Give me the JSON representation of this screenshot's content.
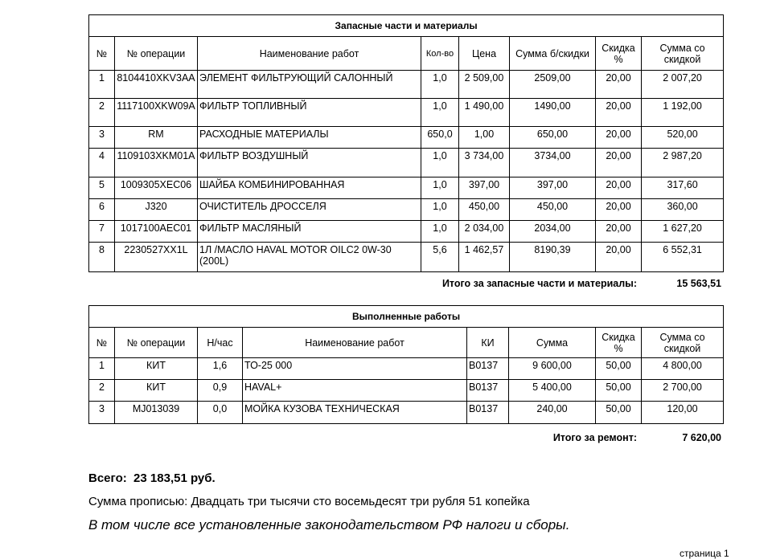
{
  "parts": {
    "title": "Запасные части  и материалы",
    "headers": [
      "№",
      "№ операции",
      "Наименование работ",
      "Кол-во",
      "Цена",
      "Сумма б/скидки",
      "Скидка %",
      "Сумма со скидкой"
    ],
    "rows": [
      [
        "1",
        "8104410XKV3AA",
        "ЭЛЕМЕНТ ФИЛЬТРУЮЩИЙ САЛОННЫЙ",
        "1,0",
        "2 509,00",
        "2509,00",
        "20,00",
        "2 007,20"
      ],
      [
        "2",
        "1117100XKW09A",
        "ФИЛЬТР ТОПЛИВНЫЙ",
        "1,0",
        "1 490,00",
        "1490,00",
        "20,00",
        "1 192,00"
      ],
      [
        "3",
        "RM",
        "РАСХОДНЫЕ МАТЕРИАЛЫ",
        "650,0",
        "1,00",
        "650,00",
        "20,00",
        "520,00"
      ],
      [
        "4",
        "1109103XKM01A",
        "ФИЛЬТР ВОЗДУШНЫЙ",
        "1,0",
        "3 734,00",
        "3734,00",
        "20,00",
        "2 987,20"
      ],
      [
        "5",
        "1009305XEC06",
        "ШАЙБА КОМБИНИРОВАННАЯ",
        "1,0",
        "397,00",
        "397,00",
        "20,00",
        "317,60"
      ],
      [
        "6",
        "J320",
        "ОЧИСТИТЕЛЬ ДРОССЕЛЯ",
        "1,0",
        "450,00",
        "450,00",
        "20,00",
        "360,00"
      ],
      [
        "7",
        "1017100AEC01",
        "ФИЛЬТР МАСЛЯНЫЙ",
        "1,0",
        "2 034,00",
        "2034,00",
        "20,00",
        "1 627,20"
      ],
      [
        "8",
        "2230527XX1L",
        "1Л /МАСЛО HAVAL MOTOR OILC2 0W-30 (200L)",
        "5,6",
        "1 462,57",
        "8190,39",
        "20,00",
        "6 552,31"
      ]
    ],
    "total_label": "Итого за запасные части и материалы:",
    "total_value": "15 563,51"
  },
  "works": {
    "title": "Выполненные работы",
    "headers": [
      "№",
      "№ операции",
      "Н/час",
      "Наименование работ",
      "КИ",
      "Сумма",
      "Скидка %",
      "Сумма со скидкой"
    ],
    "rows": [
      [
        "1",
        "КИТ",
        "1,6",
        "ТО-25 000",
        "B0137",
        "9 600,00",
        "50,00",
        "4 800,00"
      ],
      [
        "2",
        "КИТ",
        "0,9",
        "HAVAL+",
        "B0137",
        "5 400,00",
        "50,00",
        "2 700,00"
      ],
      [
        "3",
        "MJ013039",
        "0,0",
        "МОЙКА КУЗОВА ТЕХНИЧЕСКАЯ",
        "B0137",
        "240,00",
        "50,00",
        "120,00"
      ]
    ],
    "total_label": "Итого за ремонт:",
    "total_value": "7 620,00"
  },
  "summary": {
    "grand_total": "Всего:  23 183,51 руб.",
    "in_words": "Сумма прописью: Двадцать три тысячи сто восемьдесят три рубля 51 копейка",
    "taxes_note": "В том числе все установленные законодательством РФ налоги и сборы."
  },
  "footer": {
    "page": "страница 1"
  }
}
